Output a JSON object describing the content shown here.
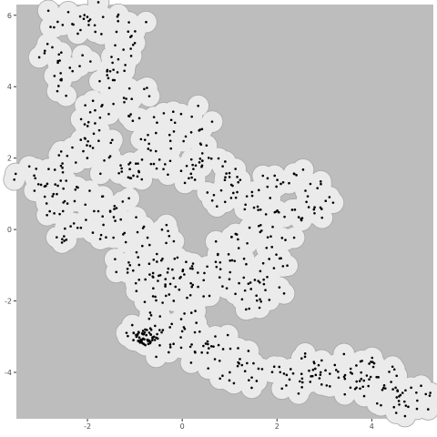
{
  "chart_data": {
    "type": "scatter",
    "title": "",
    "xlabel": "",
    "ylabel": "",
    "xlim": [
      -3.5,
      5.3
    ],
    "ylim": [
      -5.3,
      6.3
    ],
    "x_ticks": [
      -2,
      0,
      2,
      4
    ],
    "y_ticks": [
      -4,
      -2,
      0,
      2,
      4,
      6
    ],
    "x_tick_labels": [
      "-2",
      "0",
      "2",
      "4"
    ],
    "y_tick_labels": [
      "-4",
      "-2",
      "0",
      "2",
      "4",
      "6"
    ],
    "grid": false,
    "legend": "none",
    "colors": {
      "panel_background": "#bdbdbd",
      "buffer_fill": "#ebebeb",
      "buffer_outline": "#a6a6a6",
      "points": "#000000",
      "tick_label": "#4d4d4d"
    },
    "buffer_radius": 0.22,
    "spine": [
      [
        -1.85,
        6.05
      ],
      [
        -2.6,
        5.9
      ],
      [
        -1.9,
        5.6
      ],
      [
        -1.2,
        5.85
      ],
      [
        -0.8,
        5.45
      ],
      [
        -1.3,
        4.95
      ],
      [
        -2.9,
        4.9
      ],
      [
        -2.3,
        4.7
      ],
      [
        -1.5,
        4.5
      ],
      [
        -1.8,
        4.2
      ],
      [
        -2.4,
        4.1
      ],
      [
        -1.6,
        3.6
      ],
      [
        -0.9,
        3.7
      ],
      [
        -2.0,
        3.3
      ],
      [
        -1.2,
        3.1
      ],
      [
        -0.4,
        3.0
      ],
      [
        0.2,
        2.7
      ],
      [
        0.3,
        3.1
      ],
      [
        -0.5,
        2.5
      ],
      [
        -1.8,
        2.6
      ],
      [
        -2.1,
        2.2
      ],
      [
        -1.6,
        1.9
      ],
      [
        -1.0,
        1.8
      ],
      [
        -2.6,
        1.9
      ],
      [
        -3.2,
        1.4
      ],
      [
        -2.7,
        1.2
      ],
      [
        -2.0,
        1.0
      ],
      [
        -1.2,
        1.4
      ],
      [
        -2.8,
        0.7
      ],
      [
        -2.5,
        0.4
      ],
      [
        -1.7,
        0.2
      ],
      [
        -1.2,
        0.6
      ],
      [
        -2.3,
        -0.1
      ],
      [
        -1.5,
        -0.3
      ],
      [
        -0.9,
        -0.2
      ],
      [
        -0.5,
        0.0
      ],
      [
        -0.8,
        1.9
      ],
      [
        -0.2,
        1.9
      ],
      [
        0.5,
        2.1
      ],
      [
        0.7,
        1.8
      ],
      [
        0.2,
        1.5
      ],
      [
        0.9,
        1.5
      ],
      [
        1.5,
        1.2
      ],
      [
        1.4,
        0.8
      ],
      [
        0.8,
        1.0
      ],
      [
        2.0,
        1.2
      ],
      [
        2.6,
        1.4
      ],
      [
        2.9,
        0.9
      ],
      [
        2.3,
        0.6
      ],
      [
        1.8,
        0.4
      ],
      [
        2.6,
        0.4
      ],
      [
        2.0,
        -0.3
      ],
      [
        1.5,
        -0.1
      ],
      [
        0.9,
        -0.4
      ],
      [
        2.1,
        -0.8
      ],
      [
        1.6,
        -1.2
      ],
      [
        1.0,
        -0.9
      ],
      [
        0.5,
        -1.0
      ],
      [
        0.0,
        -1.2
      ],
      [
        -0.3,
        -1.5
      ],
      [
        -0.7,
        -1.5
      ],
      [
        -1.2,
        -0.9
      ],
      [
        -0.9,
        -1.1
      ],
      [
        -0.4,
        -0.6
      ],
      [
        0.2,
        -1.6
      ],
      [
        0.7,
        -1.7
      ],
      [
        1.2,
        -1.5
      ],
      [
        1.8,
        -1.7
      ],
      [
        1.5,
        -1.9
      ],
      [
        -0.5,
        -1.9
      ],
      [
        -0.3,
        -2.3
      ],
      [
        -0.5,
        -2.7
      ],
      [
        -0.8,
        -2.9
      ],
      [
        -0.7,
        -3.1
      ],
      [
        -0.5,
        -3.3
      ],
      [
        -0.2,
        -3.0
      ],
      [
        0.2,
        -2.6
      ],
      [
        0.4,
        -3.1
      ],
      [
        0.3,
        -3.4
      ],
      [
        0.8,
        -3.2
      ],
      [
        1.1,
        -3.6
      ],
      [
        0.9,
        -3.9
      ],
      [
        1.3,
        -4.1
      ],
      [
        1.7,
        -3.9
      ],
      [
        2.2,
        -4.1
      ],
      [
        2.5,
        -3.8
      ],
      [
        2.7,
        -4.0
      ],
      [
        2.4,
        -4.4
      ],
      [
        3.0,
        -4.0
      ],
      [
        3.4,
        -4.2
      ],
      [
        3.8,
        -4.1
      ],
      [
        4.0,
        -3.9
      ],
      [
        3.7,
        -4.5
      ],
      [
        4.2,
        -4.6
      ],
      [
        4.4,
        -4.2
      ],
      [
        4.6,
        -4.7
      ],
      [
        4.4,
        -5.0
      ],
      [
        5.1,
        -4.8
      ],
      [
        4.7,
        -4.4
      ],
      [
        3.5,
        -3.8
      ]
    ]
  }
}
